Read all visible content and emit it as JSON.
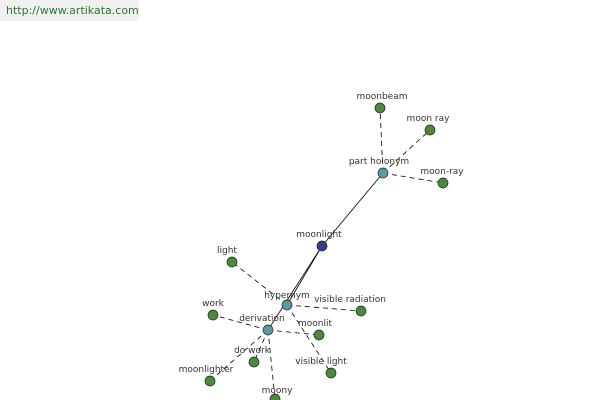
{
  "header": {
    "url": "http://www.artikata.com"
  },
  "colors": {
    "leaf": "#4a8a3a",
    "relation": "#5a9aa0",
    "center": "#3a3a8a",
    "edge": "#000000"
  },
  "graph": {
    "nodes": [
      {
        "id": "moonlight",
        "label": "moonlight",
        "kind": "center"
      },
      {
        "id": "part_holonym",
        "label": "part holonym",
        "kind": "relation"
      },
      {
        "id": "hypernym",
        "label": "hypernym",
        "kind": "relation"
      },
      {
        "id": "derivation",
        "label": "derivation",
        "kind": "relation"
      },
      {
        "id": "moonbeam",
        "label": "moonbeam",
        "kind": "leaf"
      },
      {
        "id": "moon_ray",
        "label": "moon ray",
        "kind": "leaf"
      },
      {
        "id": "moon-ray",
        "label": "moon-ray",
        "kind": "leaf"
      },
      {
        "id": "light",
        "label": "light",
        "kind": "leaf"
      },
      {
        "id": "work",
        "label": "work",
        "kind": "leaf"
      },
      {
        "id": "visible_radiation",
        "label": "visible radiation",
        "kind": "leaf"
      },
      {
        "id": "moonlit",
        "label": "moonlit",
        "kind": "leaf"
      },
      {
        "id": "visible_light",
        "label": "visible light",
        "kind": "leaf"
      },
      {
        "id": "do_work",
        "label": "do work",
        "kind": "leaf"
      },
      {
        "id": "moonlighter",
        "label": "moonlighter",
        "kind": "leaf"
      },
      {
        "id": "moony",
        "label": "moony",
        "kind": "leaf"
      }
    ],
    "edges": [
      {
        "from": "moonlight",
        "to": "part_holonym",
        "style": "solid"
      },
      {
        "from": "moonlight",
        "to": "hypernym",
        "style": "solid"
      },
      {
        "from": "moonlight",
        "to": "derivation",
        "style": "solid"
      },
      {
        "from": "part_holonym",
        "to": "moonbeam",
        "style": "dashed"
      },
      {
        "from": "part_holonym",
        "to": "moon_ray",
        "style": "dashed"
      },
      {
        "from": "part_holonym",
        "to": "moon-ray",
        "style": "dashed"
      },
      {
        "from": "hypernym",
        "to": "light",
        "style": "dashed"
      },
      {
        "from": "hypernym",
        "to": "visible_radiation",
        "style": "dashed"
      },
      {
        "from": "hypernym",
        "to": "visible_light",
        "style": "dashed"
      },
      {
        "from": "derivation",
        "to": "work",
        "style": "dashed"
      },
      {
        "from": "derivation",
        "to": "moonlit",
        "style": "dashed"
      },
      {
        "from": "derivation",
        "to": "do_work",
        "style": "dashed"
      },
      {
        "from": "derivation",
        "to": "moonlighter",
        "style": "dashed"
      },
      {
        "from": "derivation",
        "to": "moony",
        "style": "dashed"
      }
    ]
  }
}
